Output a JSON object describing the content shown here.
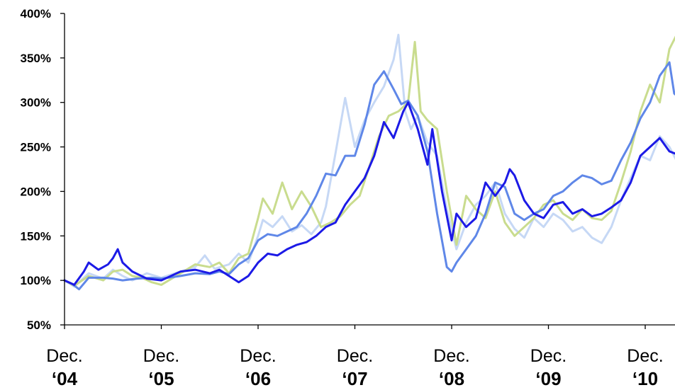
{
  "chart_data": {
    "type": "line",
    "title": "",
    "xlabel": "",
    "ylabel": "",
    "y_ticks": [
      "50%",
      "100%",
      "150%",
      "200%",
      "250%",
      "300%",
      "350%",
      "400%"
    ],
    "ylim": [
      50,
      400
    ],
    "x_ticks": [
      {
        "line1": "Dec.",
        "line2": "‘04"
      },
      {
        "line1": "Dec.",
        "line2": "‘05"
      },
      {
        "line1": "Dec.",
        "line2": "‘06"
      },
      {
        "line1": "Dec.",
        "line2": "‘07"
      },
      {
        "line1": "Dec.",
        "line2": "‘08"
      },
      {
        "line1": "Dec.",
        "line2": "‘09"
      },
      {
        "line1": "Dec.",
        "line2": "‘10"
      }
    ],
    "xlim": [
      0,
      6.37
    ],
    "grid": false,
    "legend": "none",
    "series": [
      {
        "color": "#c6d8f5",
        "x": [
          0,
          0.1,
          0.25,
          0.4,
          0.5,
          0.6,
          0.7,
          0.85,
          1.0,
          1.2,
          1.35,
          1.45,
          1.55,
          1.7,
          1.8,
          1.9,
          2.0,
          2.05,
          2.15,
          2.25,
          2.35,
          2.45,
          2.55,
          2.65,
          2.7,
          2.8,
          2.9,
          3.0,
          3.1,
          3.2,
          3.3,
          3.4,
          3.45,
          3.52,
          3.58,
          3.65,
          3.75,
          3.85,
          3.95,
          4.05,
          4.15,
          4.25,
          4.35,
          4.45,
          4.55,
          4.65,
          4.75,
          4.85,
          4.95,
          5.05,
          5.15,
          5.25,
          5.35,
          5.45,
          5.55,
          5.65,
          5.75,
          5.85,
          5.95,
          6.05,
          6.15,
          6.25,
          6.37
        ],
        "values": [
          100,
          93,
          108,
          102,
          112,
          105,
          100,
          108,
          103,
          110,
          115,
          128,
          113,
          118,
          130,
          120,
          150,
          168,
          160,
          172,
          155,
          162,
          152,
          165,
          183,
          243,
          305,
          250,
          280,
          300,
          318,
          348,
          376,
          290,
          270,
          285,
          255,
          240,
          180,
          135,
          165,
          185,
          195,
          210,
          175,
          158,
          148,
          170,
          160,
          175,
          168,
          155,
          160,
          148,
          142,
          160,
          190,
          215,
          240,
          235,
          262,
          250,
          225
        ]
      },
      {
        "color": "#c9dc8e",
        "x": [
          0,
          0.1,
          0.25,
          0.4,
          0.5,
          0.6,
          0.7,
          0.8,
          0.9,
          1.0,
          1.2,
          1.35,
          1.5,
          1.6,
          1.7,
          1.8,
          1.9,
          2.0,
          2.05,
          2.15,
          2.25,
          2.35,
          2.45,
          2.55,
          2.65,
          2.75,
          2.85,
          2.95,
          3.05,
          3.15,
          3.25,
          3.35,
          3.45,
          3.55,
          3.62,
          3.68,
          3.75,
          3.85,
          3.95,
          4.05,
          4.15,
          4.25,
          4.35,
          4.45,
          4.55,
          4.65,
          4.75,
          4.85,
          4.95,
          5.05,
          5.15,
          5.25,
          5.35,
          5.45,
          5.55,
          5.65,
          5.75,
          5.85,
          5.95,
          6.05,
          6.15,
          6.25,
          6.32,
          6.37
        ],
        "values": [
          100,
          94,
          105,
          100,
          110,
          112,
          105,
          103,
          98,
          95,
          108,
          118,
          115,
          120,
          108,
          125,
          130,
          170,
          192,
          175,
          210,
          180,
          200,
          183,
          160,
          165,
          172,
          185,
          195,
          228,
          262,
          285,
          290,
          300,
          368,
          290,
          280,
          270,
          200,
          140,
          195,
          180,
          170,
          200,
          165,
          150,
          160,
          170,
          185,
          190,
          175,
          168,
          180,
          170,
          168,
          178,
          210,
          245,
          290,
          320,
          300,
          360,
          375,
          330
        ]
      },
      {
        "color": "#5f87e8",
        "x": [
          0,
          0.08,
          0.15,
          0.25,
          0.4,
          0.5,
          0.6,
          0.75,
          0.9,
          1.0,
          1.2,
          1.35,
          1.5,
          1.6,
          1.7,
          1.8,
          1.9,
          2.0,
          2.1,
          2.2,
          2.3,
          2.4,
          2.5,
          2.6,
          2.7,
          2.8,
          2.9,
          3.0,
          3.1,
          3.2,
          3.3,
          3.4,
          3.48,
          3.55,
          3.65,
          3.75,
          3.85,
          3.95,
          4.0,
          4.05,
          4.15,
          4.25,
          4.35,
          4.45,
          4.55,
          4.65,
          4.75,
          4.85,
          4.95,
          5.05,
          5.15,
          5.25,
          5.35,
          5.45,
          5.55,
          5.65,
          5.75,
          5.85,
          5.95,
          6.05,
          6.15,
          6.25,
          6.3,
          6.37
        ],
        "values": [
          100,
          96,
          90,
          103,
          103,
          102,
          100,
          102,
          103,
          102,
          105,
          108,
          107,
          110,
          107,
          118,
          125,
          145,
          152,
          150,
          155,
          160,
          175,
          195,
          220,
          218,
          240,
          240,
          275,
          320,
          335,
          315,
          298,
          302,
          285,
          245,
          175,
          115,
          110,
          120,
          135,
          150,
          175,
          210,
          205,
          175,
          168,
          175,
          180,
          195,
          200,
          210,
          218,
          215,
          208,
          212,
          235,
          255,
          282,
          300,
          330,
          345,
          310,
          303
        ]
      },
      {
        "color": "#1c1ae6",
        "x": [
          0,
          0.1,
          0.2,
          0.25,
          0.35,
          0.45,
          0.5,
          0.55,
          0.6,
          0.7,
          0.85,
          1.0,
          1.2,
          1.35,
          1.5,
          1.6,
          1.7,
          1.8,
          1.9,
          2.0,
          2.1,
          2.2,
          2.3,
          2.4,
          2.5,
          2.6,
          2.7,
          2.8,
          2.9,
          3.0,
          3.1,
          3.2,
          3.3,
          3.4,
          3.5,
          3.55,
          3.65,
          3.75,
          3.8,
          3.9,
          4.0,
          4.05,
          4.15,
          4.25,
          4.35,
          4.45,
          4.55,
          4.6,
          4.65,
          4.75,
          4.85,
          4.95,
          5.05,
          5.15,
          5.25,
          5.35,
          5.45,
          5.55,
          5.65,
          5.75,
          5.85,
          5.95,
          6.05,
          6.15,
          6.25,
          6.37
        ],
        "values": [
          100,
          95,
          110,
          120,
          112,
          118,
          125,
          135,
          120,
          110,
          102,
          100,
          110,
          112,
          108,
          112,
          105,
          98,
          105,
          120,
          130,
          128,
          135,
          140,
          143,
          150,
          160,
          165,
          185,
          200,
          215,
          240,
          278,
          260,
          290,
          300,
          270,
          230,
          270,
          200,
          145,
          175,
          160,
          170,
          210,
          195,
          210,
          225,
          218,
          190,
          175,
          170,
          185,
          188,
          175,
          180,
          172,
          175,
          182,
          190,
          210,
          240,
          250,
          260,
          245,
          240
        ]
      }
    ]
  }
}
